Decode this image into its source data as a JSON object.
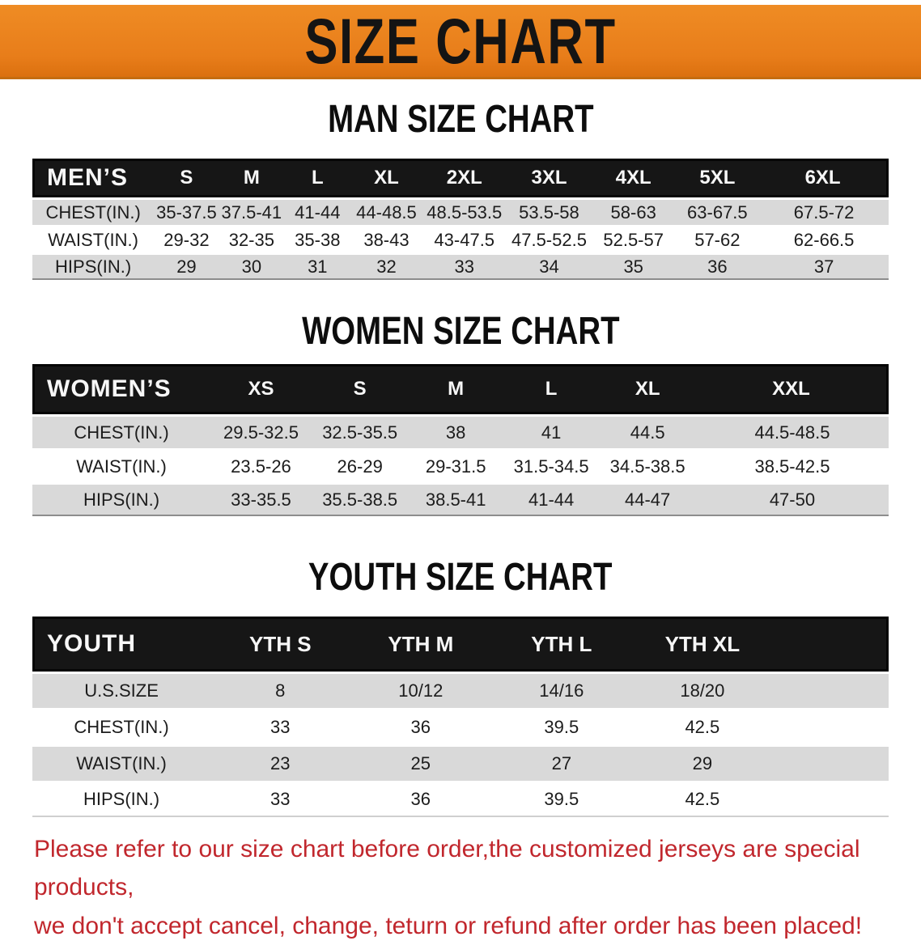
{
  "banner": {
    "title": "SIZE CHART",
    "background_color": "#e8811e",
    "text_color": "#141414"
  },
  "sections": [
    {
      "heading": "MAN SIZE CHART",
      "table": {
        "label": "MEN’S",
        "columns": [
          "S",
          "M",
          "L",
          "XL",
          "2XL",
          "3XL",
          "4XL",
          "5XL",
          "6XL"
        ],
        "rows": [
          {
            "label": "CHEST(IN.)",
            "values": [
              "35-37.5",
              "37.5-41",
              "41-44",
              "44-48.5",
              "48.5-53.5",
              "53.5-58",
              "58-63",
              "63-67.5",
              "67.5-72"
            ]
          },
          {
            "label": "WAIST(IN.)",
            "values": [
              "29-32",
              "32-35",
              "35-38",
              "38-43",
              "43-47.5",
              "47.5-52.5",
              "52.5-57",
              "57-62",
              "62-66.5"
            ]
          },
          {
            "label": "HIPS(IN.)",
            "values": [
              "29",
              "30",
              "31",
              "32",
              "33",
              "34",
              "35",
              "36",
              "37"
            ]
          }
        ]
      }
    },
    {
      "heading": "WOMEN SIZE CHART",
      "table": {
        "label": "WOMEN’S",
        "columns": [
          "XS",
          "S",
          "M",
          "L",
          "XL",
          "XXL"
        ],
        "rows": [
          {
            "label": "CHEST(IN.)",
            "values": [
              "29.5-32.5",
              "32.5-35.5",
              "38",
              "41",
              "44.5",
              "44.5-48.5"
            ]
          },
          {
            "label": "WAIST(IN.)",
            "values": [
              "23.5-26",
              "26-29",
              "29-31.5",
              "31.5-34.5",
              "34.5-38.5",
              "38.5-42.5"
            ]
          },
          {
            "label": "HIPS(IN.)",
            "values": [
              "33-35.5",
              "35.5-38.5",
              "38.5-41",
              "41-44",
              "44-47",
              "47-50"
            ]
          }
        ]
      }
    },
    {
      "heading": "YOUTH SIZE CHART",
      "table": {
        "label": "YOUTH",
        "columns": [
          "YTH S",
          "YTH M",
          "YTH L",
          "YTH XL"
        ],
        "rows": [
          {
            "label": "U.S.SIZE",
            "values": [
              "8",
              "10/12",
              "14/16",
              "18/20"
            ]
          },
          {
            "label": "CHEST(IN.)",
            "values": [
              "33",
              "36",
              "39.5",
              "42.5"
            ]
          },
          {
            "label": "WAIST(IN.)",
            "values": [
              "23",
              "25",
              "27",
              "29"
            ]
          },
          {
            "label": "HIPS(IN.)",
            "values": [
              "33",
              "36",
              "39.5",
              "42.5"
            ]
          }
        ]
      }
    }
  ],
  "disclaimer": {
    "color": "#c1272d",
    "lines": [
      "Please refer to our size chart before order,the customized jerseys are special products,",
      "we don't accept cancel, change, teturn or refund after order has been placed!"
    ]
  },
  "theme": {
    "header_bar_color": "#161616",
    "row_stripe_color": "#d9d9d9"
  }
}
